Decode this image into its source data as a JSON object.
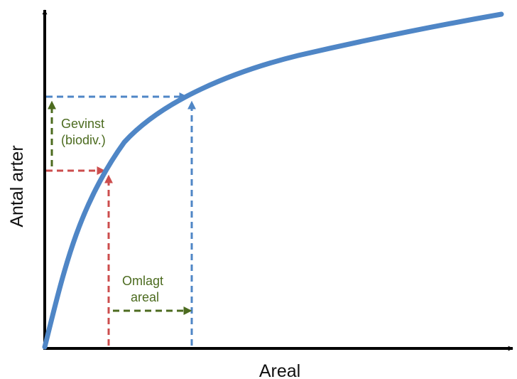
{
  "axes": {
    "x_label": "Areal",
    "y_label": "Antal arter"
  },
  "annotations": {
    "gain": [
      "Gevinst",
      "(biodiv.)"
    ],
    "converted_area": [
      "Omlagt",
      "areal"
    ]
  },
  "colors": {
    "curve": "#4f86c6",
    "before": "#cc4d4d",
    "after": "#4f86c6",
    "change": "#4c6b1f",
    "axis": "#000000"
  }
}
